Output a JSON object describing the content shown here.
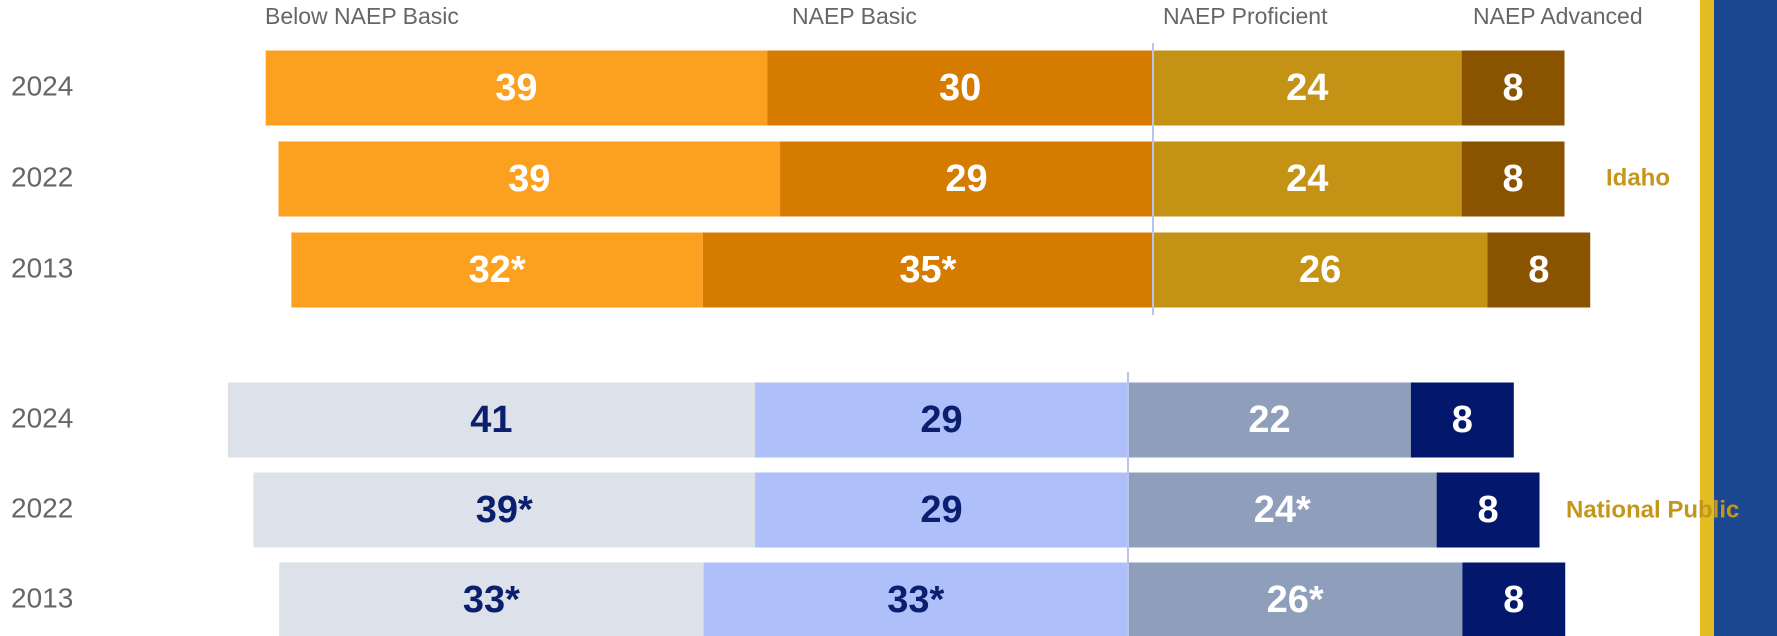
{
  "chart_data": {
    "type": "bar",
    "legend": [
      "Below NAEP Basic",
      "NAEP Basic",
      "NAEP Proficient",
      "NAEP  Advanced"
    ],
    "groups": [
      {
        "name": "Idaho",
        "name_color": "#c4961a",
        "categories": [
          "2024",
          "2022",
          "2013"
        ],
        "series": [
          {
            "color": "#fba01f",
            "label_color": "#ffffff",
            "values": [
              39,
              39,
              32
            ],
            "value_labels": [
              "39",
              "39",
              "32*"
            ]
          },
          {
            "color": "#d47b00",
            "label_color": "#ffffff",
            "values": [
              30,
              29,
              35
            ],
            "value_labels": [
              "30",
              "29",
              "35*"
            ]
          },
          {
            "color": "#c49214",
            "label_color": "#ffffff",
            "values": [
              24,
              24,
              26
            ],
            "value_labels": [
              "24",
              "24",
              "26"
            ]
          },
          {
            "color": "#8a5300",
            "label_color": "#ffffff",
            "values": [
              8,
              8,
              8
            ],
            "value_labels": [
              "8",
              "8",
              "8"
            ]
          }
        ]
      },
      {
        "name": "National Public",
        "name_color": "#c4961a",
        "categories": [
          "2024",
          "2022",
          "2013"
        ],
        "series": [
          {
            "color": "#dce1ea",
            "label_color": "#0b1f6e",
            "values": [
              41,
              39,
              33
            ],
            "value_labels": [
              "41",
              "39*",
              "33*"
            ]
          },
          {
            "color": "#afbffa",
            "label_color": "#0b1f6e",
            "values": [
              29,
              29,
              33
            ],
            "value_labels": [
              "29",
              "29",
              "33*"
            ]
          },
          {
            "color": "#8e9ebb",
            "label_color": "#ffffff",
            "values": [
              22,
              24,
              26
            ],
            "value_labels": [
              "22",
              "24*",
              "26*"
            ]
          },
          {
            "color": "#03186c",
            "label_color": "#ffffff",
            "values": [
              8,
              8,
              8
            ],
            "value_labels": [
              "8",
              "8",
              "8"
            ]
          }
        ]
      }
    ]
  }
}
